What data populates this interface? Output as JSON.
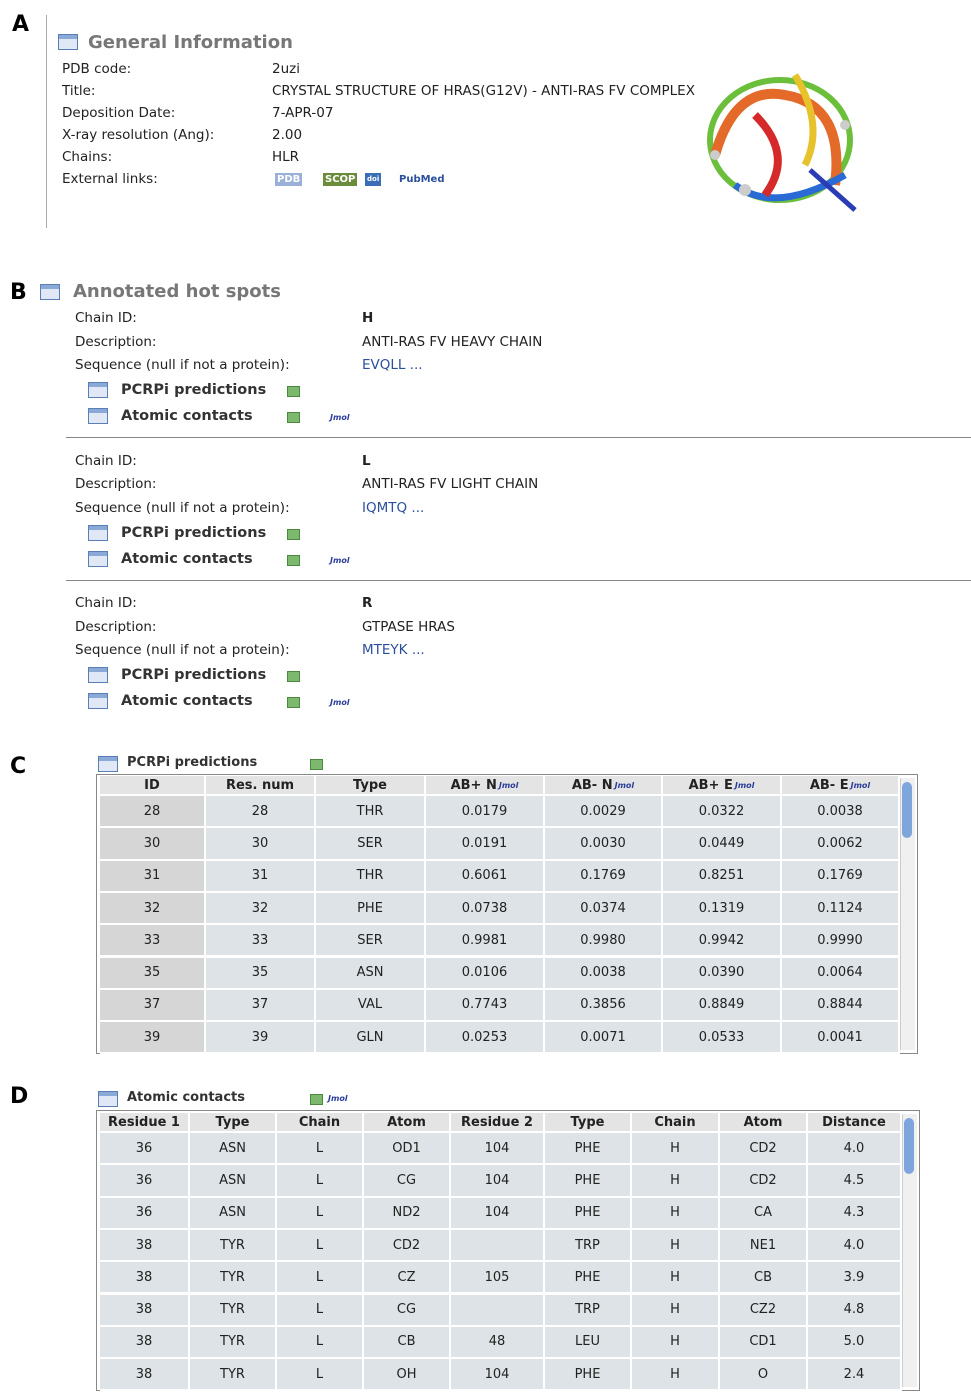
{
  "panel_letters": [
    "A",
    "B",
    "C",
    "D"
  ],
  "general": {
    "title": "General Information",
    "fields": [
      {
        "label": "PDB code:",
        "value": "2uzi"
      },
      {
        "label": "Title:",
        "value": "CRYSTAL STRUCTURE OF HRAS(G12V) - ANTI-RAS FV COMPLEX"
      },
      {
        "label": "Deposition Date:",
        "value": "7-APR-07"
      },
      {
        "label": "X-ray resolution (Ang):",
        "value": "2.00"
      },
      {
        "label": "Chains:",
        "value": "HLR"
      },
      {
        "label": "External links:",
        "links": [
          "PDB",
          "SCOP",
          "doi",
          "PubMed"
        ]
      }
    ]
  },
  "hot_spots": {
    "title": "Annotated hot spots",
    "labels": {
      "chain_id": "Chain ID:",
      "description": "Description:",
      "sequence": "Sequence (null if not a protein):",
      "pcrpi": "PCRPi predictions",
      "contacts": "Atomic contacts",
      "jmol": "Jmol"
    },
    "chains": [
      {
        "id": "H",
        "description": "ANTI-RAS FV HEAVY CHAIN",
        "sequence": "EVQLL ..."
      },
      {
        "id": "L",
        "description": "ANTI-RAS FV LIGHT CHAIN",
        "sequence": "IQMTQ ..."
      },
      {
        "id": "R",
        "description": "GTPASE HRAS",
        "sequence": "MTEYK ..."
      }
    ]
  },
  "pcrpi_table": {
    "title": "PCRPi predictions",
    "columns": [
      "ID",
      "Res. num",
      "Type",
      "AB+ N",
      "AB- N",
      "AB+ E",
      "AB- E"
    ],
    "rows": [
      [
        "28",
        "28",
        "THR",
        "0.0179",
        "0.0029",
        "0.0322",
        "0.0038"
      ],
      [
        "30",
        "30",
        "SER",
        "0.0191",
        "0.0030",
        "0.0449",
        "0.0062"
      ],
      [
        "31",
        "31",
        "THR",
        "0.6061",
        "0.1769",
        "0.8251",
        "0.1769"
      ],
      [
        "32",
        "32",
        "PHE",
        "0.0738",
        "0.0374",
        "0.1319",
        "0.1124"
      ],
      [
        "33",
        "33",
        "SER",
        "0.9981",
        "0.9980",
        "0.9942",
        "0.9990"
      ],
      [
        "35",
        "35",
        "ASN",
        "0.0106",
        "0.0038",
        "0.0390",
        "0.0064"
      ],
      [
        "37",
        "37",
        "VAL",
        "0.7743",
        "0.3856",
        "0.8849",
        "0.8844"
      ],
      [
        "39",
        "39",
        "GLN",
        "0.0253",
        "0.0071",
        "0.0533",
        "0.0041"
      ]
    ]
  },
  "contacts_table": {
    "title": "Atomic contacts",
    "columns": [
      "Residue 1",
      "Type",
      "Chain",
      "Atom",
      "Residue 2",
      "Type",
      "Chain",
      "Atom",
      "Distance"
    ],
    "rows": [
      [
        "36",
        "ASN",
        "L",
        "OD1",
        "104",
        "PHE",
        "H",
        "CD2",
        "4.0"
      ],
      [
        "36",
        "ASN",
        "L",
        "CG",
        "104",
        "PHE",
        "H",
        "CD2",
        "4.5"
      ],
      [
        "36",
        "ASN",
        "L",
        "ND2",
        "104",
        "PHE",
        "H",
        "CA",
        "4.3"
      ],
      [
        "38",
        "TYR",
        "L",
        "CD2",
        null,
        "TRP",
        "H",
        "NE1",
        "4.0"
      ],
      [
        "38",
        "TYR",
        "L",
        "CZ",
        "105",
        "PHE",
        "H",
        "CB",
        "3.9"
      ],
      [
        "38",
        "TYR",
        "L",
        "CG",
        null,
        "TRP",
        "H",
        "CZ2",
        "4.8"
      ],
      [
        "38",
        "TYR",
        "L",
        "CB",
        "48",
        "LEU",
        "H",
        "CD1",
        "5.0"
      ],
      [
        "38",
        "TYR",
        "L",
        "OH",
        "104",
        "PHE",
        "H",
        "O",
        "2.4"
      ]
    ]
  }
}
